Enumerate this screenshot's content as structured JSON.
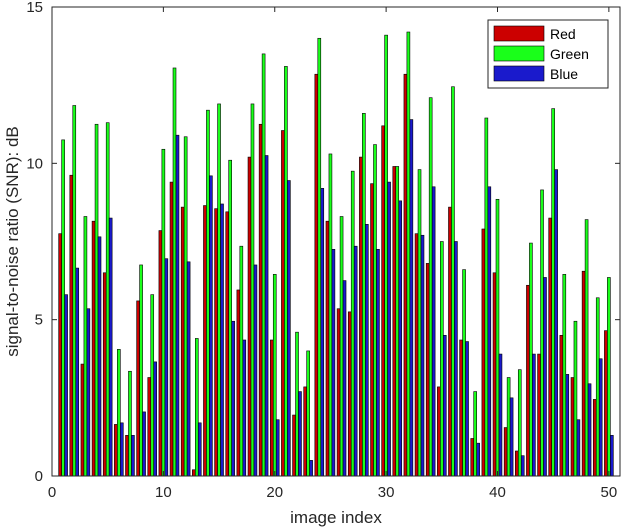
{
  "chart_data": {
    "type": "bar",
    "title": "",
    "xlabel": "image index",
    "ylabel": "signal-to-noise ratio (SNR): dB",
    "xlim": [
      0,
      51
    ],
    "ylim": [
      0,
      15
    ],
    "xticks": [
      0,
      10,
      20,
      30,
      40,
      50
    ],
    "yticks": [
      0,
      5,
      10,
      15
    ],
    "grid": false,
    "legend_position": "top-right",
    "x": [
      1,
      2,
      3,
      4,
      5,
      6,
      7,
      8,
      9,
      10,
      11,
      12,
      13,
      14,
      15,
      16,
      17,
      18,
      19,
      20,
      21,
      22,
      23,
      24,
      25,
      26,
      27,
      28,
      29,
      30,
      31,
      32,
      33,
      34,
      35,
      36,
      37,
      38,
      39,
      40,
      41,
      42,
      43,
      44,
      45,
      46,
      47,
      48,
      49,
      50
    ],
    "series": [
      {
        "name": "Red",
        "color": "#cc0000",
        "values": [
          7.75,
          9.62,
          3.58,
          8.15,
          6.5,
          1.65,
          1.3,
          5.6,
          3.15,
          7.85,
          9.4,
          8.6,
          0.2,
          8.65,
          8.55,
          8.45,
          5.95,
          10.2,
          11.25,
          4.35,
          11.05,
          1.95,
          2.85,
          12.85,
          8.15,
          5.35,
          5.25,
          10.2,
          9.35,
          11.2,
          9.9,
          12.85,
          7.75,
          6.8,
          2.85,
          8.6,
          4.35,
          1.2,
          7.9,
          6.5,
          1.55,
          0.8,
          6.1,
          3.9,
          8.25,
          4.5,
          3.15,
          6.55,
          2.45,
          4.65
        ]
      },
      {
        "name": "Green",
        "color": "#1aff1a",
        "values": [
          10.75,
          11.85,
          8.3,
          11.25,
          11.3,
          4.05,
          3.35,
          6.75,
          5.8,
          10.45,
          13.05,
          10.85,
          4.4,
          11.7,
          11.9,
          10.1,
          7.35,
          11.9,
          13.5,
          6.45,
          13.1,
          4.6,
          4.0,
          14.0,
          10.3,
          8.3,
          9.75,
          11.6,
          10.6,
          14.1,
          9.9,
          14.2,
          9.8,
          12.1,
          7.5,
          12.45,
          6.6,
          2.7,
          11.45,
          8.85,
          3.15,
          3.4,
          7.45,
          9.15,
          11.75,
          6.45,
          4.95,
          8.2,
          5.7,
          6.35
        ]
      },
      {
        "name": "Blue",
        "color": "#1a1acc",
        "values": [
          5.8,
          6.65,
          5.35,
          7.65,
          8.25,
          1.7,
          1.3,
          2.05,
          3.65,
          6.95,
          10.9,
          6.85,
          1.7,
          9.6,
          8.7,
          4.95,
          4.35,
          6.75,
          10.25,
          1.8,
          9.45,
          2.7,
          0.5,
          9.2,
          7.25,
          6.25,
          7.35,
          8.05,
          7.25,
          9.4,
          8.8,
          11.4,
          7.7,
          9.25,
          4.5,
          7.5,
          4.3,
          1.05,
          9.25,
          3.9,
          2.5,
          0.65,
          3.9,
          6.35,
          9.8,
          3.25,
          1.8,
          2.95,
          3.75,
          1.3
        ]
      }
    ]
  }
}
